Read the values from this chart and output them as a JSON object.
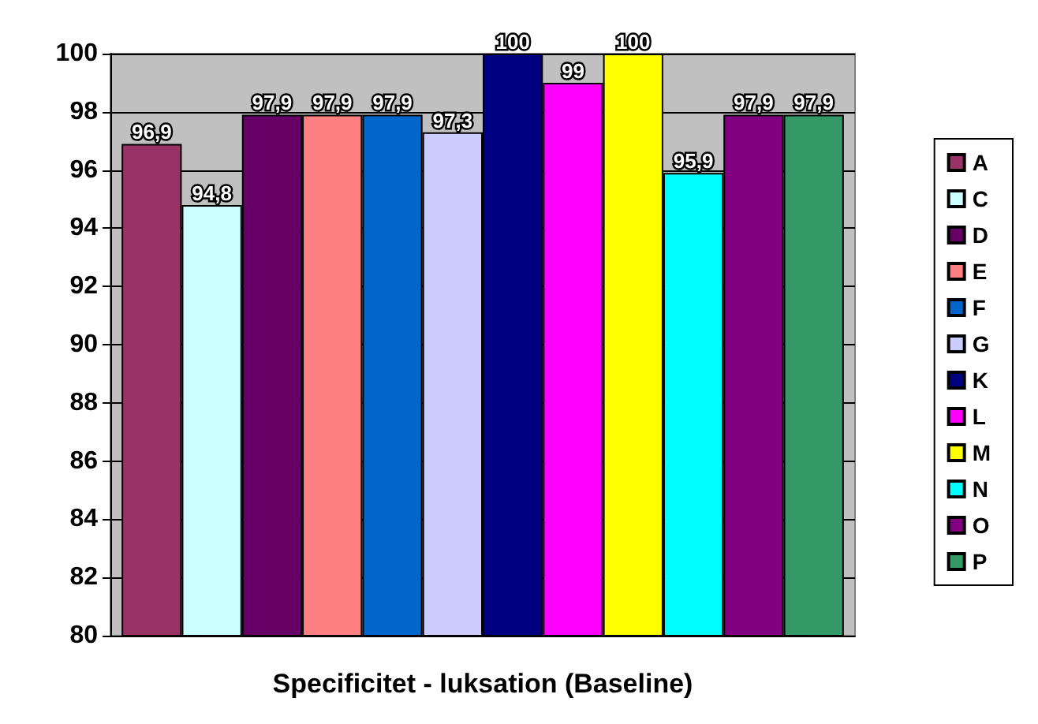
{
  "chart_data": {
    "type": "bar",
    "xlabel": "Specificitet - luksation (Baseline)",
    "categories": [
      null
    ],
    "ylim": [
      80,
      100
    ],
    "yticks": [
      80,
      82,
      84,
      86,
      88,
      90,
      92,
      94,
      96,
      98,
      100
    ],
    "grid": "y",
    "legend": "right",
    "series": [
      {
        "name": "A",
        "color": "#993366",
        "values": [
          96.9
        ],
        "value_labels": [
          "96,9"
        ]
      },
      {
        "name": "C",
        "color": "#ccffff",
        "values": [
          94.8
        ],
        "value_labels": [
          "94,8"
        ]
      },
      {
        "name": "D",
        "color": "#660066",
        "values": [
          97.9
        ],
        "value_labels": [
          "97,9"
        ]
      },
      {
        "name": "E",
        "color": "#ff8080",
        "values": [
          97.9
        ],
        "value_labels": [
          "97,9"
        ]
      },
      {
        "name": "F",
        "color": "#0066cc",
        "values": [
          97.9
        ],
        "value_labels": [
          "97,9"
        ]
      },
      {
        "name": "G",
        "color": "#ccccff",
        "values": [
          97.3
        ],
        "value_labels": [
          "97,3"
        ]
      },
      {
        "name": "K",
        "color": "#000080",
        "values": [
          100
        ],
        "value_labels": [
          "100"
        ]
      },
      {
        "name": "L",
        "color": "#ff00ff",
        "values": [
          99
        ],
        "value_labels": [
          "99"
        ]
      },
      {
        "name": "M",
        "color": "#ffff00",
        "values": [
          100
        ],
        "value_labels": [
          "100"
        ]
      },
      {
        "name": "N",
        "color": "#00ffff",
        "values": [
          95.9
        ],
        "value_labels": [
          "95,9"
        ]
      },
      {
        "name": "O",
        "color": "#800080",
        "values": [
          97.9
        ],
        "value_labels": [
          "97,9"
        ]
      },
      {
        "name": "P",
        "color": "#339966",
        "values": [
          97.9
        ],
        "value_labels": [
          "97,9"
        ]
      }
    ]
  }
}
